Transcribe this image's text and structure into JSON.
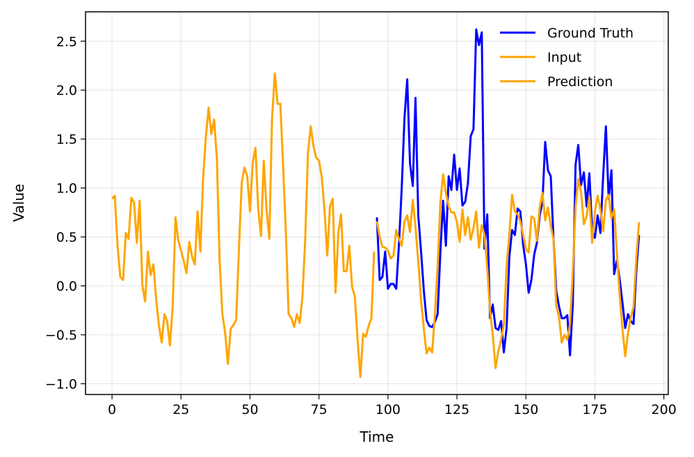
{
  "chart_data": {
    "type": "line",
    "title": "",
    "xlabel": "Time",
    "ylabel": "Value",
    "xlim": [
      -9.6,
      201.6
    ],
    "ylim": [
      -1.11,
      2.8
    ],
    "xticks": [
      0,
      25,
      50,
      75,
      100,
      125,
      150,
      175,
      200
    ],
    "xtick_labels": [
      "0",
      "25",
      "50",
      "75",
      "100",
      "125",
      "150",
      "175",
      "200"
    ],
    "yticks": [
      -1.0,
      -0.5,
      0.0,
      0.5,
      1.0,
      1.5,
      2.0,
      2.5
    ],
    "ytick_labels": [
      "−1.0",
      "−0.5",
      "0.0",
      "0.5",
      "1.0",
      "1.5",
      "2.0",
      "2.5"
    ],
    "grid": true,
    "legend_position": "top-right",
    "series": [
      {
        "name": "Ground Truth",
        "color": "#0000ff",
        "x_start": 96,
        "values": [
          0.7,
          0.06,
          0.09,
          0.35,
          -0.03,
          0.02,
          0.02,
          -0.03,
          0.42,
          1.0,
          1.72,
          2.11,
          1.25,
          1.02,
          1.92,
          0.72,
          0.35,
          -0.05,
          -0.35,
          -0.41,
          -0.42,
          -0.37,
          -0.29,
          0.35,
          0.87,
          0.41,
          1.12,
          0.98,
          1.34,
          0.98,
          1.2,
          0.82,
          0.86,
          1.05,
          1.53,
          1.6,
          2.62,
          2.46,
          2.59,
          0.38,
          0.73,
          -0.33,
          -0.19,
          -0.43,
          -0.45,
          -0.36,
          -0.68,
          -0.43,
          0.3,
          0.57,
          0.52,
          0.79,
          0.76,
          0.42,
          0.22,
          -0.07,
          0.06,
          0.32,
          0.44,
          0.72,
          0.86,
          1.47,
          1.18,
          1.12,
          0.49,
          -0.05,
          -0.21,
          -0.33,
          -0.33,
          -0.3,
          -0.71,
          -0.19,
          1.24,
          1.44,
          1.03,
          1.16,
          0.81,
          1.15,
          0.57,
          0.49,
          0.72,
          0.54,
          1.13,
          1.63,
          0.89,
          1.18,
          0.12,
          0.26,
          0.06,
          -0.17,
          -0.43,
          -0.29,
          -0.36,
          -0.39,
          0.15,
          0.52
        ]
      },
      {
        "name": "Input",
        "color": "#ffa500",
        "x_start": 0,
        "values": [
          0.89,
          0.92,
          0.41,
          0.09,
          0.06,
          0.54,
          0.48,
          0.9,
          0.85,
          0.44,
          0.87,
          0.01,
          -0.16,
          0.35,
          0.11,
          0.22,
          -0.14,
          -0.4,
          -0.58,
          -0.29,
          -0.36,
          -0.61,
          -0.2,
          0.7,
          0.47,
          0.36,
          0.25,
          0.13,
          0.45,
          0.3,
          0.22,
          0.76,
          0.35,
          1.09,
          1.52,
          1.82,
          1.55,
          1.7,
          1.3,
          0.26,
          -0.29,
          -0.48,
          -0.8,
          -0.44,
          -0.4,
          -0.35,
          0.38,
          1.05,
          1.21,
          1.12,
          0.76,
          1.26,
          1.41,
          0.78,
          0.51,
          1.28,
          0.78,
          0.48,
          1.71,
          2.17,
          1.86,
          1.86,
          1.23,
          0.55,
          -0.29,
          -0.33,
          -0.42,
          -0.29,
          -0.38,
          -0.11,
          0.46,
          1.35,
          1.63,
          1.43,
          1.31,
          1.28,
          1.12,
          0.78,
          0.31,
          0.81,
          0.89,
          -0.07,
          0.54,
          0.73,
          0.15,
          0.15,
          0.41,
          -0.01,
          -0.11,
          -0.55,
          -0.93,
          -0.49,
          -0.52,
          -0.41,
          -0.33,
          0.35
        ]
      },
      {
        "name": "Prediction",
        "color": "#ffa500",
        "x_start": 96,
        "values": [
          0.66,
          0.5,
          0.4,
          0.39,
          0.36,
          0.28,
          0.31,
          0.57,
          0.48,
          0.41,
          0.66,
          0.72,
          0.55,
          0.88,
          0.6,
          0.25,
          -0.15,
          -0.44,
          -0.69,
          -0.63,
          -0.68,
          -0.3,
          0.2,
          0.85,
          1.14,
          0.95,
          0.81,
          0.75,
          0.75,
          0.65,
          0.45,
          0.78,
          0.52,
          0.7,
          0.47,
          0.59,
          0.76,
          0.39,
          0.62,
          0.52,
          0.18,
          -0.25,
          -0.5,
          -0.84,
          -0.67,
          -0.55,
          -0.4,
          0.2,
          0.53,
          0.93,
          0.76,
          0.73,
          0.66,
          0.52,
          0.38,
          0.34,
          0.71,
          0.69,
          0.46,
          0.8,
          0.95,
          0.67,
          0.8,
          0.61,
          0.48,
          -0.2,
          -0.32,
          -0.58,
          -0.5,
          -0.55,
          -0.39,
          0.13,
          0.81,
          1.09,
          0.96,
          0.63,
          0.71,
          0.91,
          0.44,
          0.76,
          0.92,
          0.78,
          0.56,
          0.88,
          0.93,
          0.69,
          0.78,
          0.33,
          -0.1,
          -0.44,
          -0.72,
          -0.48,
          -0.32,
          -0.22,
          0.27,
          0.65
        ]
      }
    ]
  }
}
